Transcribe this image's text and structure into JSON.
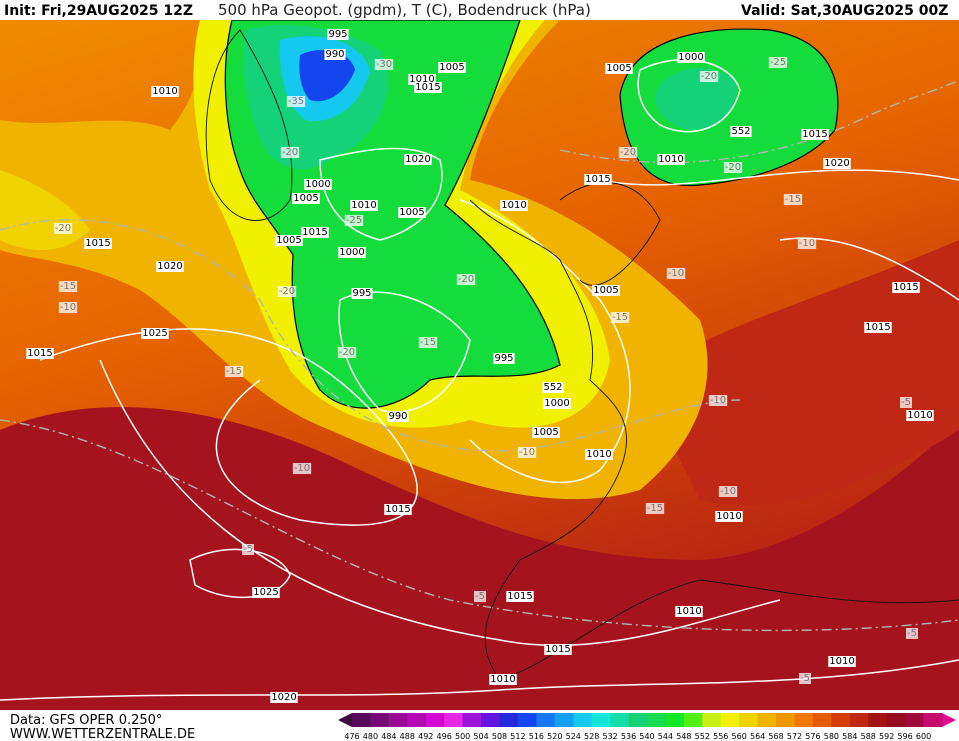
{
  "header": {
    "init": "Init: Fri,29AUG2025 12Z",
    "title": "500 hPa Geopot. (gpdm), T (C), Bodendruck (hPa)",
    "valid": "Valid: Sat,30AUG2025 00Z"
  },
  "footer": {
    "source": "Data: GFS OPER 0.250°",
    "site": "WWW.WETTERZENTRALE.DE"
  },
  "colorbar": {
    "labels": [
      476,
      480,
      484,
      488,
      492,
      496,
      500,
      504,
      508,
      512,
      516,
      520,
      524,
      528,
      532,
      536,
      540,
      544,
      548,
      552,
      556,
      560,
      564,
      568,
      572,
      576,
      580,
      584,
      588,
      592,
      596,
      600
    ],
    "colors": [
      "#5a0a5a",
      "#780a78",
      "#960a96",
      "#b40ab4",
      "#d20ad2",
      "#e628e6",
      "#9b14dc",
      "#6414dc",
      "#2828dc",
      "#1446f0",
      "#1478f0",
      "#14a0f0",
      "#14c8f0",
      "#14e6dc",
      "#14dcaa",
      "#14d278",
      "#14dc50",
      "#14e628",
      "#50f014",
      "#c8f014",
      "#f0f000",
      "#f0d200",
      "#f0b400",
      "#f09600",
      "#f07800",
      "#e65a00",
      "#d23c00",
      "#be2814",
      "#a51414",
      "#960a1e",
      "#a00a3c",
      "#c80a6e"
    ]
  },
  "map_labels": [
    995,
    990,
    -30,
    1010,
    1005,
    1015,
    -35,
    -20,
    1020,
    1000,
    1005,
    1010,
    1005,
    -25,
    1015,
    1005,
    1000,
    995,
    -20,
    -15,
    -20,
    995,
    552,
    1000,
    990,
    1005,
    -10,
    1010,
    -10,
    1015,
    -15,
    -10,
    1010,
    -5,
    1025,
    -5,
    1015,
    1010,
    1015,
    1010,
    1020,
    1010,
    -20,
    1015,
    1020,
    -15,
    -10,
    1025,
    1015,
    -15,
    -20,
    1000,
    -20,
    -25,
    1005,
    552,
    1015,
    -20,
    1010,
    -20,
    1020,
    1015,
    1010,
    -15,
    -10,
    -10,
    1005,
    -15,
    1015,
    1015,
    -10,
    -5,
    1010,
    1010,
    -5,
    -5
  ]
}
